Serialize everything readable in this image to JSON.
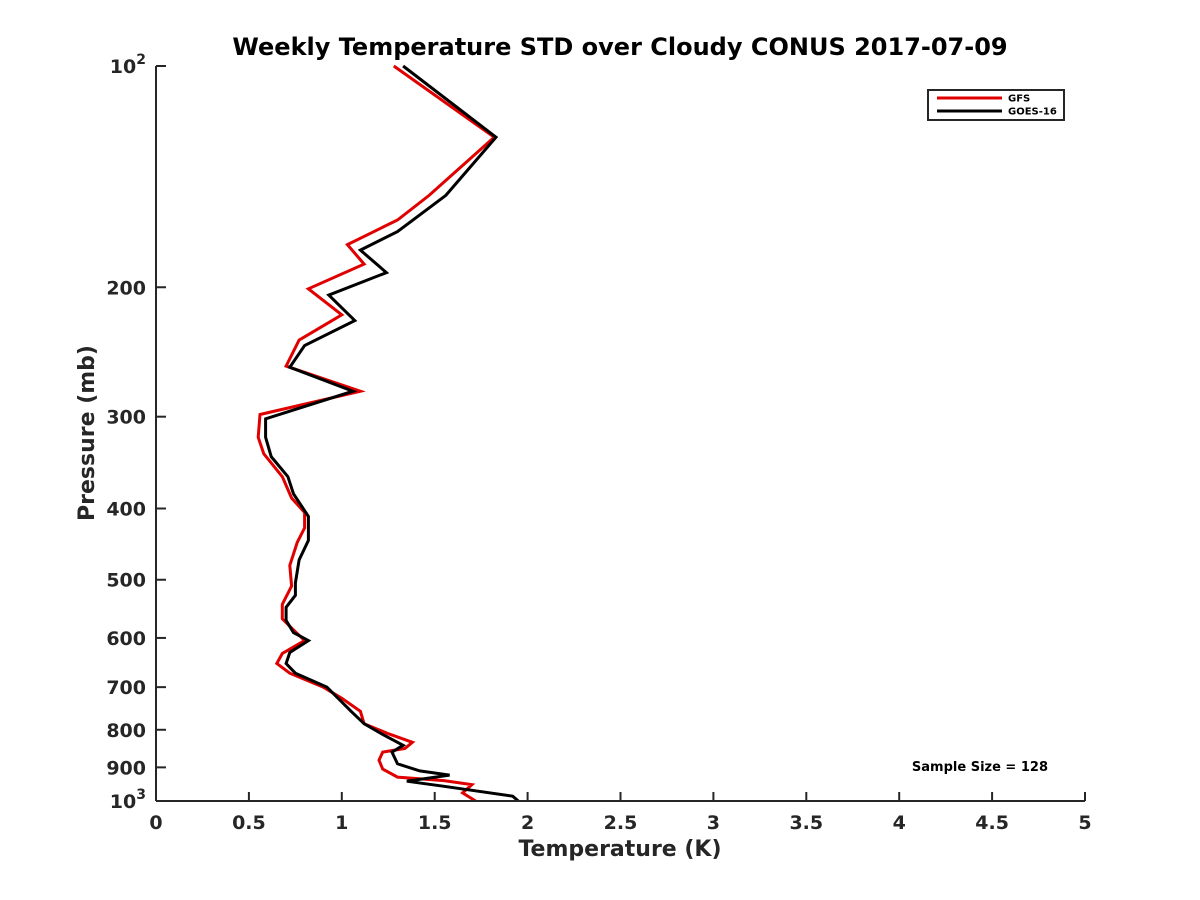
{
  "chart_data": {
    "type": "line",
    "title": "Weekly Temperature STD over Cloudy CONUS 2017-07-09",
    "xlabel": "Temperature (K)",
    "ylabel": "Pressure (mb)",
    "xlim": [
      0,
      5
    ],
    "ylim": [
      100,
      1000
    ],
    "y_scale": "log",
    "y_reversed": true,
    "grid": false,
    "legend_position": "top-right",
    "x_ticks": [
      0,
      0.5,
      1,
      1.5,
      2,
      2.5,
      3,
      3.5,
      4,
      4.5,
      5
    ],
    "x_tick_labels": [
      "0",
      "0.5",
      "1",
      "1.5",
      "2",
      "2.5",
      "3",
      "3.5",
      "4",
      "4.5",
      "5"
    ],
    "y_ticks": [
      {
        "value": 100,
        "label": "10",
        "sup": "2"
      },
      {
        "value": 200,
        "label": "200"
      },
      {
        "value": 300,
        "label": "300"
      },
      {
        "value": 400,
        "label": "400"
      },
      {
        "value": 500,
        "label": "500"
      },
      {
        "value": 600,
        "label": "600"
      },
      {
        "value": 700,
        "label": "700"
      },
      {
        "value": 800,
        "label": "800"
      },
      {
        "value": 900,
        "label": "900"
      },
      {
        "value": 1000,
        "label": "10",
        "sup": "3"
      }
    ],
    "annotation": "Sample Size = 128",
    "series": [
      {
        "name": "GFS",
        "color": "#e00000",
        "points": [
          [
            1.28,
            100
          ],
          [
            1.82,
            125
          ],
          [
            1.47,
            150
          ],
          [
            1.3,
            162
          ],
          [
            1.03,
            175
          ],
          [
            1.12,
            186
          ],
          [
            0.82,
            201
          ],
          [
            1.0,
            218
          ],
          [
            0.77,
            236
          ],
          [
            0.7,
            256
          ],
          [
            1.1,
            277
          ],
          [
            0.56,
            298
          ],
          [
            0.55,
            320
          ],
          [
            0.58,
            337
          ],
          [
            0.68,
            362
          ],
          [
            0.73,
            387
          ],
          [
            0.8,
            405
          ],
          [
            0.8,
            425
          ],
          [
            0.76,
            445
          ],
          [
            0.72,
            478
          ],
          [
            0.73,
            510
          ],
          [
            0.68,
            540
          ],
          [
            0.68,
            565
          ],
          [
            0.74,
            585
          ],
          [
            0.8,
            605
          ],
          [
            0.68,
            630
          ],
          [
            0.65,
            650
          ],
          [
            0.72,
            670
          ],
          [
            0.9,
            700
          ],
          [
            1.0,
            725
          ],
          [
            1.1,
            755
          ],
          [
            1.12,
            785
          ],
          [
            1.25,
            810
          ],
          [
            1.38,
            832
          ],
          [
            1.34,
            848
          ],
          [
            1.22,
            858
          ],
          [
            1.2,
            880
          ],
          [
            1.22,
            905
          ],
          [
            1.3,
            928
          ],
          [
            1.55,
            938
          ],
          [
            1.7,
            950
          ],
          [
            1.65,
            975
          ],
          [
            1.72,
            1000
          ]
        ]
      },
      {
        "name": "GOES-16",
        "color": "#000000",
        "points": [
          [
            1.33,
            100
          ],
          [
            1.83,
            125
          ],
          [
            1.56,
            150
          ],
          [
            1.3,
            168
          ],
          [
            1.1,
            178
          ],
          [
            1.24,
            191
          ],
          [
            0.93,
            205
          ],
          [
            1.07,
            222
          ],
          [
            0.8,
            240
          ],
          [
            0.72,
            257
          ],
          [
            1.06,
            277
          ],
          [
            0.59,
            302
          ],
          [
            0.59,
            320
          ],
          [
            0.62,
            340
          ],
          [
            0.71,
            362
          ],
          [
            0.74,
            382
          ],
          [
            0.82,
            410
          ],
          [
            0.82,
            442
          ],
          [
            0.77,
            470
          ],
          [
            0.75,
            505
          ],
          [
            0.75,
            525
          ],
          [
            0.7,
            545
          ],
          [
            0.7,
            568
          ],
          [
            0.74,
            590
          ],
          [
            0.82,
            605
          ],
          [
            0.72,
            628
          ],
          [
            0.7,
            650
          ],
          [
            0.75,
            670
          ],
          [
            0.92,
            700
          ],
          [
            0.98,
            725
          ],
          [
            1.05,
            755
          ],
          [
            1.12,
            785
          ],
          [
            1.22,
            812
          ],
          [
            1.33,
            840
          ],
          [
            1.27,
            858
          ],
          [
            1.3,
            890
          ],
          [
            1.42,
            910
          ],
          [
            1.58,
            922
          ],
          [
            1.35,
            940
          ],
          [
            1.55,
            955
          ],
          [
            1.92,
            985
          ],
          [
            1.95,
            1000
          ]
        ]
      }
    ]
  }
}
